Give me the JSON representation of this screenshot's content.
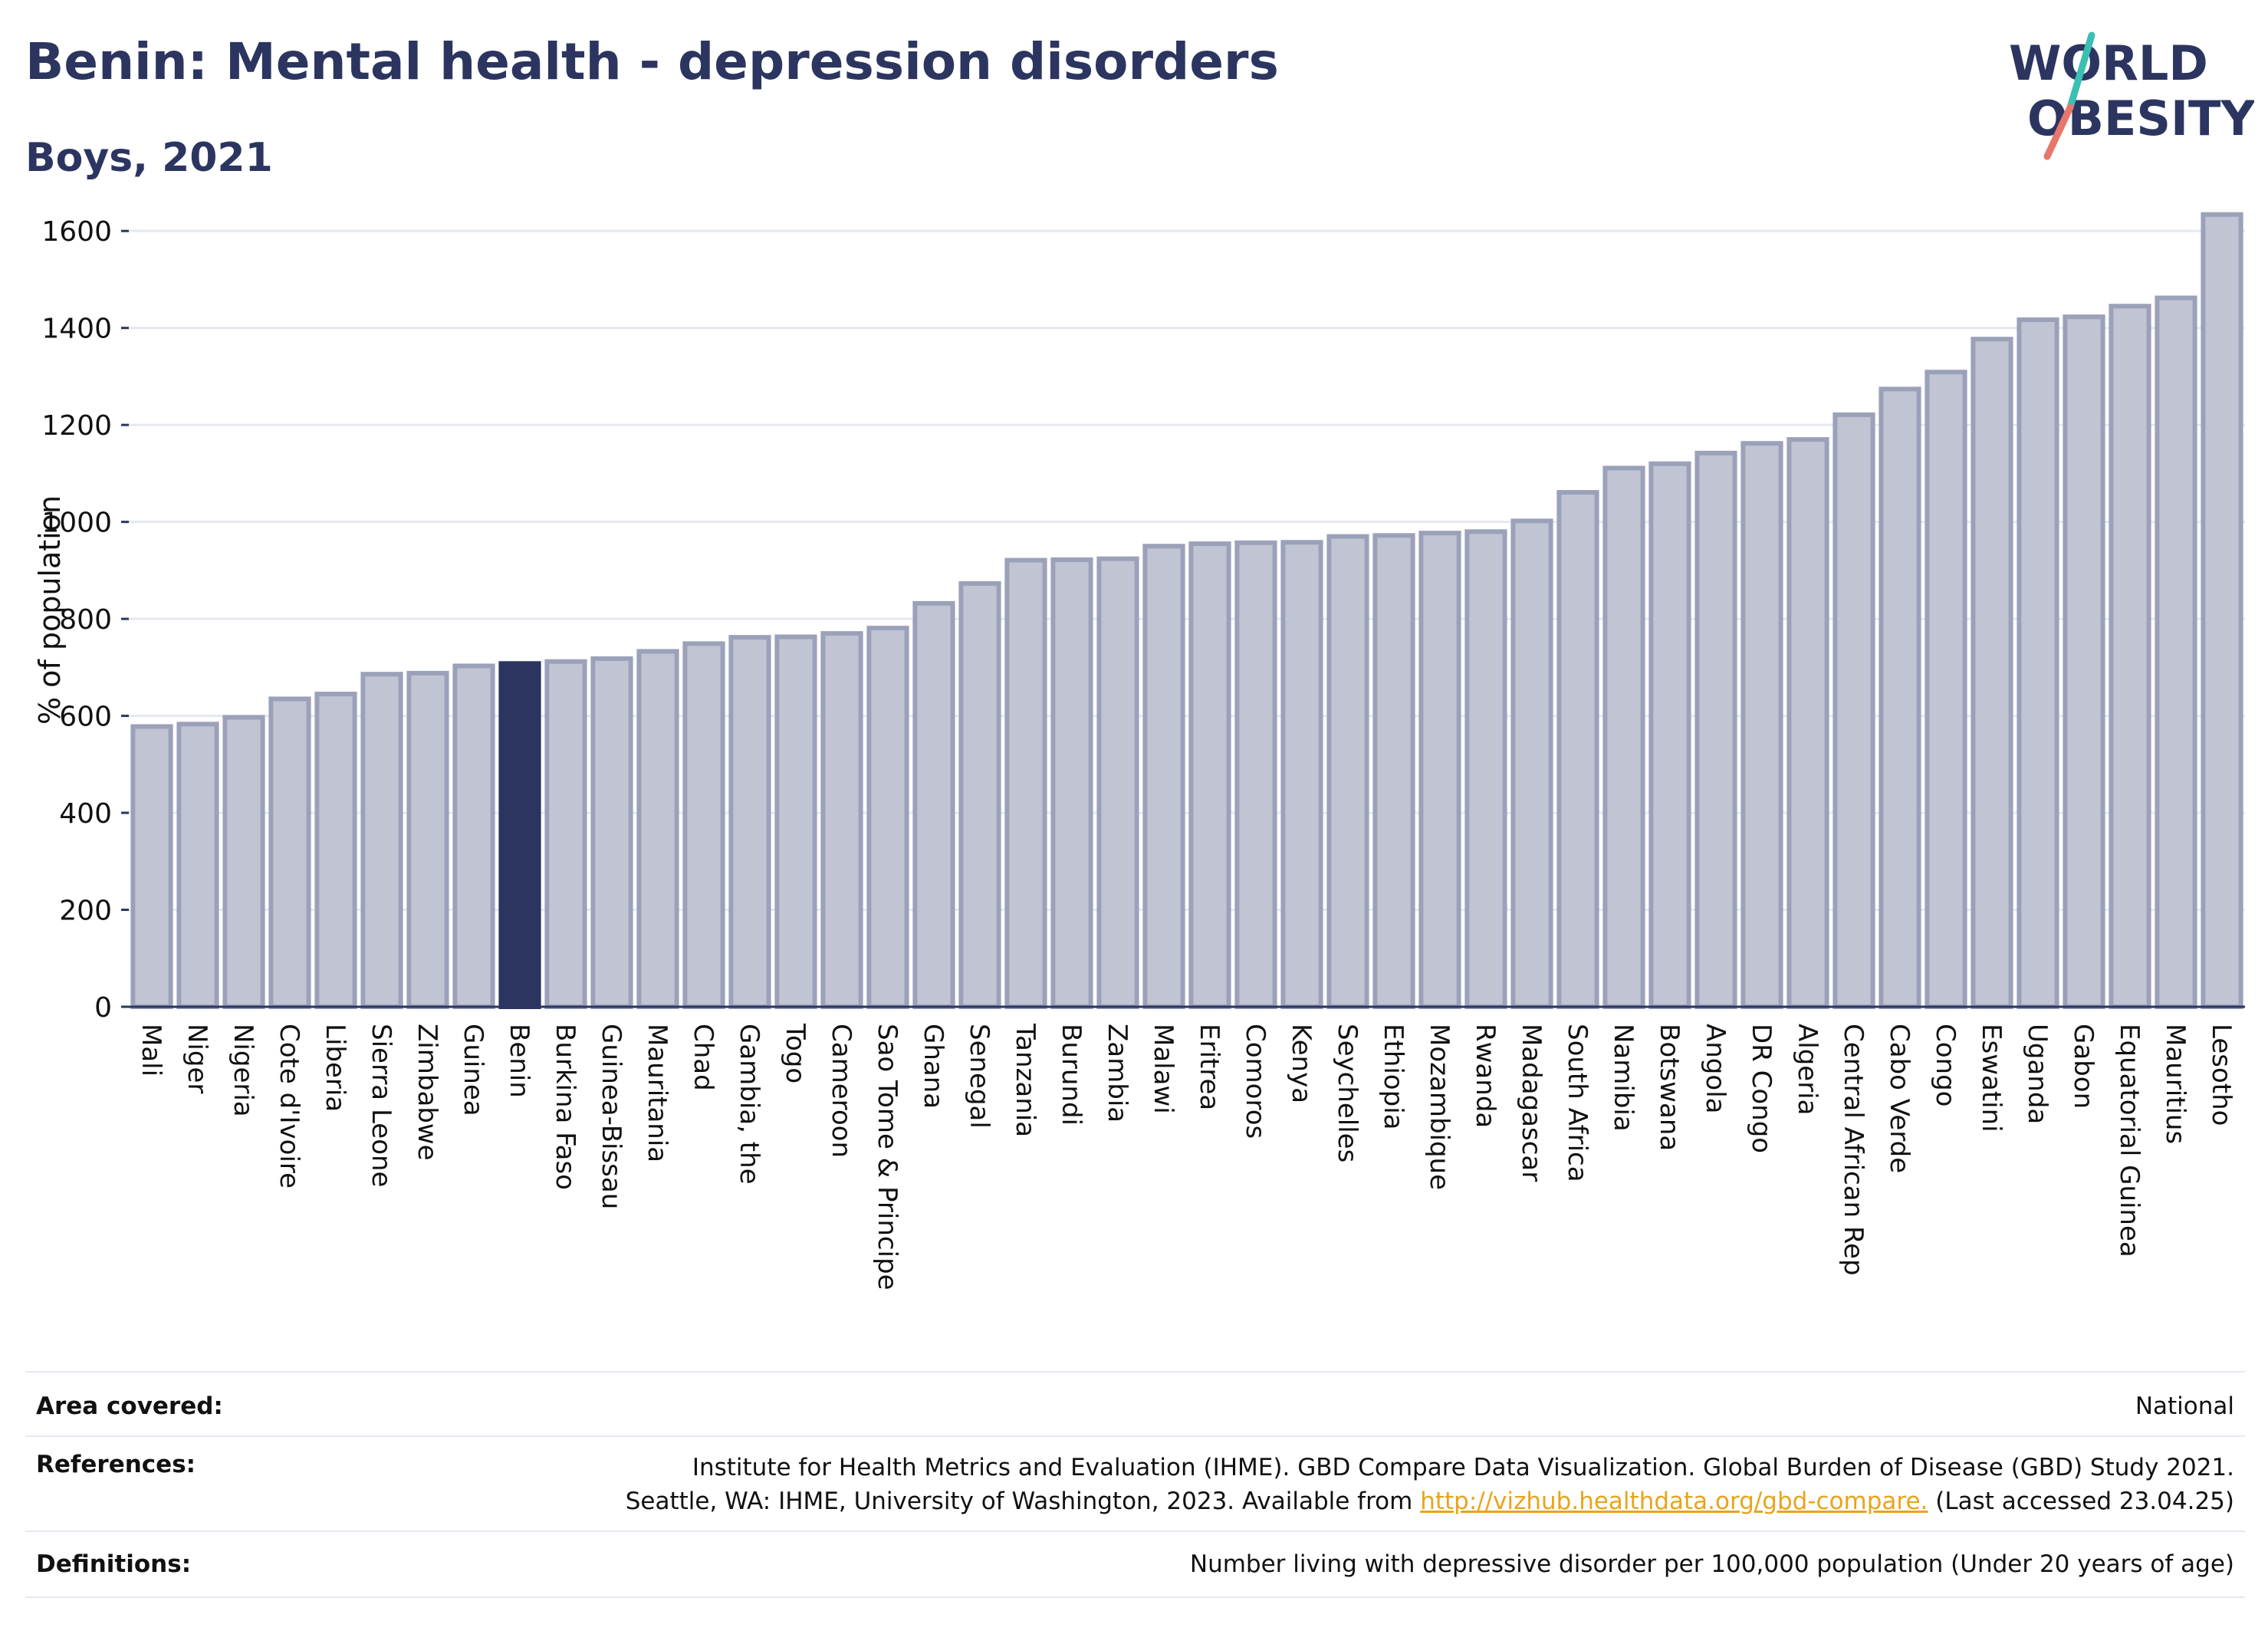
{
  "title": "Benin: Mental health - depression disorders",
  "subtitle": "Boys, 2021",
  "logo": {
    "line1": "WORLD",
    "line2": "OBESITY"
  },
  "colors": {
    "bar": "#c0c4d3",
    "bar_stroke": "#9ba1b9",
    "highlight": "#2b3560",
    "grid": "#e6e8f0",
    "slash_teal": "#3bbfb3",
    "slash_coral": "#e8766a"
  },
  "chart_data": {
    "type": "bar",
    "ylabel": "% of population",
    "ylim": [
      0,
      1700
    ],
    "yticks": [
      0,
      200,
      400,
      600,
      800,
      1000,
      1200,
      1400,
      1600
    ],
    "grid": true,
    "highlight": "Benin",
    "categories": [
      "Mali",
      "Niger",
      "Nigeria",
      "Cote d'Ivoire",
      "Liberia",
      "Sierra Leone",
      "Zimbabwe",
      "Guinea",
      "Benin",
      "Burkina Faso",
      "Guinea-Bissau",
      "Mauritania",
      "Chad",
      "Gambia, the",
      "Togo",
      "Cameroon",
      "Sao Tome & Principe",
      "Ghana",
      "Senegal",
      "Tanzania",
      "Burundi",
      "Zambia",
      "Malawi",
      "Eritrea",
      "Comoros",
      "Kenya",
      "Seychelles",
      "Ethiopia",
      "Mozambique",
      "Rwanda",
      "Madagascar",
      "South Africa",
      "Namibia",
      "Botswana",
      "Angola",
      "DR Congo",
      "Algeria",
      "Central African Rep",
      "Cabo Verde",
      "Congo",
      "Eswatini",
      "Uganda",
      "Gabon",
      "Equatorial Guinea",
      "Mauritius",
      "Lesotho"
    ],
    "values": [
      578,
      583,
      597,
      635,
      645,
      686,
      688,
      703,
      708,
      712,
      718,
      733,
      749,
      762,
      763,
      770,
      781,
      832,
      873,
      921,
      922,
      924,
      950,
      955,
      957,
      958,
      970,
      972,
      977,
      980,
      1002,
      1061,
      1111,
      1120,
      1142,
      1162,
      1170,
      1221,
      1274,
      1309,
      1377,
      1417,
      1423,
      1445,
      1462,
      1634
    ]
  },
  "info": {
    "area_label": "Area covered:",
    "area_value": "National",
    "references_label": "References:",
    "references_line1": "Institute for Health Metrics and Evaluation (IHME). GBD Compare Data Visualization. Global Burden of Disease (GBD) Study 2021.",
    "references_line2_prefix": "Seattle, WA: IHME, University of Washington, 2023. Available from ",
    "references_link": "http://vizhub.healthdata.org/gbd-compare.",
    "references_line2_suffix": " (Last accessed 23.04.25)",
    "definitions_label": "Definitions:",
    "definitions_value": "Number living with depressive disorder per 100,000 population (Under 20 years of age)"
  }
}
